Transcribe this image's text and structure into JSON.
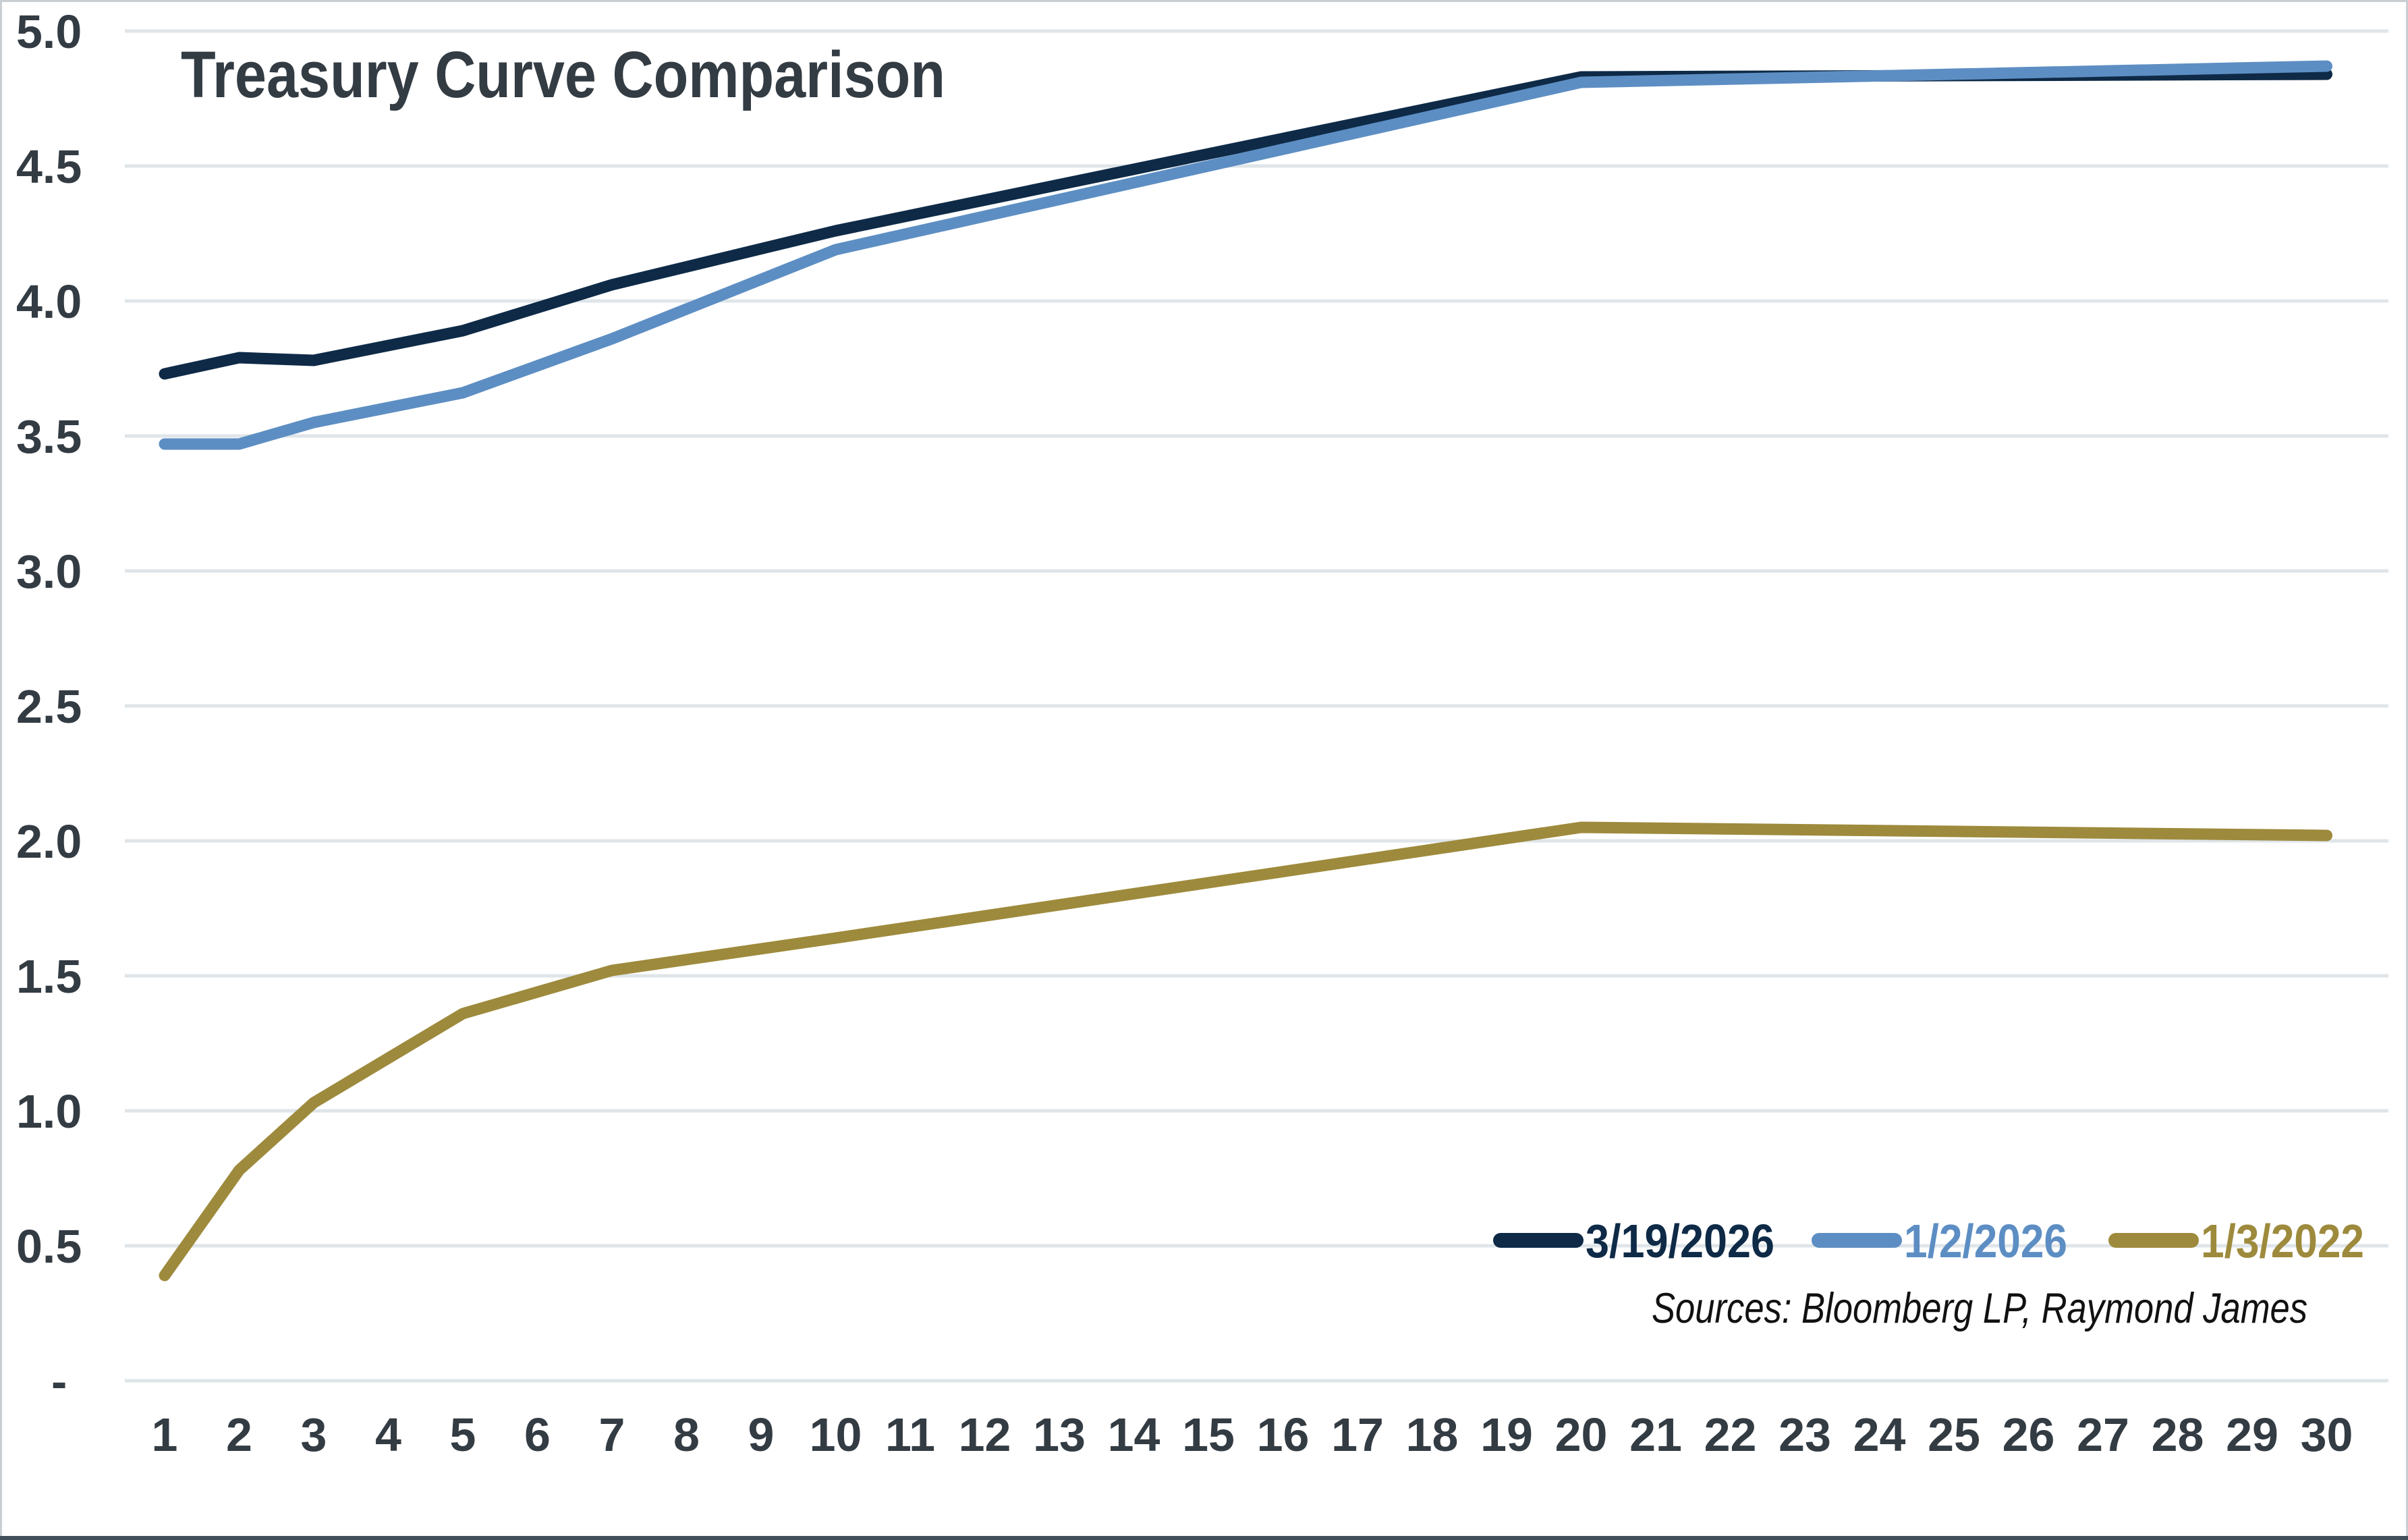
{
  "page": {
    "background": "#ffffff",
    "border_color": "#c9ced2",
    "bottom_bar_color": "#41505a"
  },
  "chart_data": {
    "type": "line",
    "title": "Treasury Curve Comparison",
    "source_note": "Sources: Bloomberg LP, Raymond James",
    "xlabel": "",
    "ylabel": "",
    "ylim": [
      0,
      5.0
    ],
    "xlim": [
      1,
      30
    ],
    "grid": "horizontal",
    "legend_position": "bottom-right-inside",
    "grid_color": "#dfe5e9",
    "label_color": "#333b43",
    "title_color": "#333b43",
    "source_color": "#111111",
    "x": [
      1,
      2,
      3,
      5,
      7,
      10,
      20,
      30
    ],
    "series": [
      {
        "name": "3/19/2026",
        "color": "#0e2a47",
        "values": [
          3.73,
          3.79,
          3.78,
          3.89,
          4.06,
          4.26,
          4.83,
          4.84
        ]
      },
      {
        "name": "1/2/2026",
        "color": "#5d8ec3",
        "values": [
          3.47,
          3.47,
          3.55,
          3.66,
          3.86,
          4.19,
          4.81,
          4.87
        ]
      },
      {
        "name": "1/3/2022",
        "color": "#9d8a3c",
        "values": [
          0.39,
          0.78,
          1.03,
          1.36,
          1.52,
          1.64,
          2.05,
          2.02
        ]
      }
    ],
    "x_axis": {
      "ticks": [
        "1",
        "2",
        "3",
        "4",
        "5",
        "6",
        "7",
        "8",
        "9",
        "10",
        "11",
        "12",
        "13",
        "14",
        "15",
        "16",
        "17",
        "18",
        "19",
        "20",
        "21",
        "22",
        "23",
        "24",
        "25",
        "26",
        "27",
        "28",
        "29",
        "30"
      ]
    },
    "y_axis": {
      "ticks": [
        {
          "label": "5.0",
          "value": 5.0
        },
        {
          "label": "4.5",
          "value": 4.5
        },
        {
          "label": "4.0",
          "value": 4.0
        },
        {
          "label": "3.5",
          "value": 3.5
        },
        {
          "label": "3.0",
          "value": 3.0
        },
        {
          "label": "2.5",
          "value": 2.5
        },
        {
          "label": "2.0",
          "value": 2.0
        },
        {
          "label": "1.5",
          "value": 1.5
        },
        {
          "label": "1.0",
          "value": 1.0
        },
        {
          "label": "0.5",
          "value": 0.5
        },
        {
          "label": "-",
          "value": 0
        }
      ]
    }
  }
}
